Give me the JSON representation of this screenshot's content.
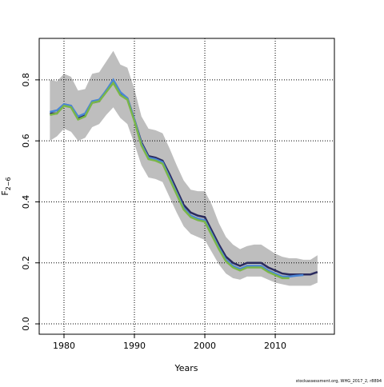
{
  "chart_data": {
    "type": "line",
    "xlabel": "Years",
    "ylabel": {
      "main": "F",
      "sub": "2−6"
    },
    "footnote": "stockassessment.org, WHG_2017_2, r8894",
    "x": [
      1978,
      1979,
      1980,
      1981,
      1982,
      1983,
      1984,
      1985,
      1986,
      1987,
      1988,
      1989,
      1990,
      1991,
      1992,
      1993,
      1994,
      1995,
      1996,
      1997,
      1998,
      1999,
      2000,
      2001,
      2002,
      2003,
      2004,
      2005,
      2006,
      2007,
      2008,
      2009,
      2010,
      2011,
      2012,
      2013,
      2014,
      2015,
      2016
    ],
    "band_color": "#bebebe",
    "band_upper": [
      0.8,
      0.795,
      0.82,
      0.81,
      0.765,
      0.77,
      0.82,
      0.825,
      0.86,
      0.895,
      0.85,
      0.84,
      0.77,
      0.68,
      0.64,
      0.635,
      0.625,
      0.575,
      0.52,
      0.47,
      0.44,
      0.435,
      0.435,
      0.39,
      0.33,
      0.285,
      0.26,
      0.245,
      0.255,
      0.26,
      0.26,
      0.245,
      0.23,
      0.22,
      0.215,
      0.215,
      0.21,
      0.21,
      0.225
    ],
    "band_lower": [
      0.6,
      0.615,
      0.64,
      0.63,
      0.6,
      0.61,
      0.645,
      0.655,
      0.685,
      0.71,
      0.675,
      0.655,
      0.59,
      0.52,
      0.48,
      0.475,
      0.465,
      0.415,
      0.365,
      0.32,
      0.295,
      0.285,
      0.275,
      0.235,
      0.195,
      0.165,
      0.15,
      0.145,
      0.155,
      0.155,
      0.155,
      0.145,
      0.135,
      0.13,
      0.125,
      0.125,
      0.125,
      0.125,
      0.135
    ],
    "series": [
      {
        "color": "#2b2b5e",
        "values": [
          0.69,
          0.69,
          0.72,
          0.715,
          0.675,
          0.685,
          0.725,
          0.73,
          0.765,
          0.795,
          0.755,
          0.74,
          0.67,
          0.595,
          0.55,
          0.545,
          0.535,
          0.49,
          0.44,
          0.39,
          0.365,
          0.355,
          0.35,
          0.305,
          0.26,
          0.22,
          0.2,
          0.19,
          0.2,
          0.2,
          0.2,
          0.185,
          0.175,
          0.165,
          0.162,
          0.162,
          0.162,
          0.162,
          0.17
        ]
      },
      {
        "color": "#4a86d6",
        "values": [
          0.695,
          0.7,
          0.72,
          0.715,
          0.68,
          0.69,
          0.73,
          0.735,
          0.765,
          0.8,
          0.76,
          0.74,
          0.67,
          0.59,
          0.545,
          0.54,
          0.53,
          0.48,
          0.43,
          0.38,
          0.355,
          0.345,
          0.34,
          0.295,
          0.25,
          0.21,
          0.19,
          0.18,
          0.19,
          0.19,
          0.19,
          0.175,
          0.165,
          0.155,
          0.155,
          0.158,
          0.16,
          null,
          null
        ]
      },
      {
        "color": "#7ab648",
        "values": [
          0.685,
          0.69,
          0.715,
          0.71,
          0.67,
          0.68,
          0.725,
          0.73,
          0.76,
          0.79,
          0.75,
          0.735,
          0.665,
          0.585,
          0.54,
          0.535,
          0.525,
          0.475,
          0.425,
          0.375,
          0.35,
          0.34,
          0.335,
          0.29,
          0.245,
          0.205,
          0.185,
          0.175,
          0.185,
          0.185,
          0.185,
          0.17,
          0.16,
          0.15,
          0.15,
          null,
          null,
          null,
          null
        ]
      }
    ],
    "xlim": [
      1976.48,
      2018.4
    ],
    "ylim": [
      -0.034,
      0.936
    ],
    "xticks": [
      1980,
      1990,
      2000,
      2010
    ],
    "yticks": [
      {
        "value": 0,
        "label": "0.0"
      },
      0.2,
      0.4,
      0.6,
      0.8
    ],
    "grid": true
  }
}
